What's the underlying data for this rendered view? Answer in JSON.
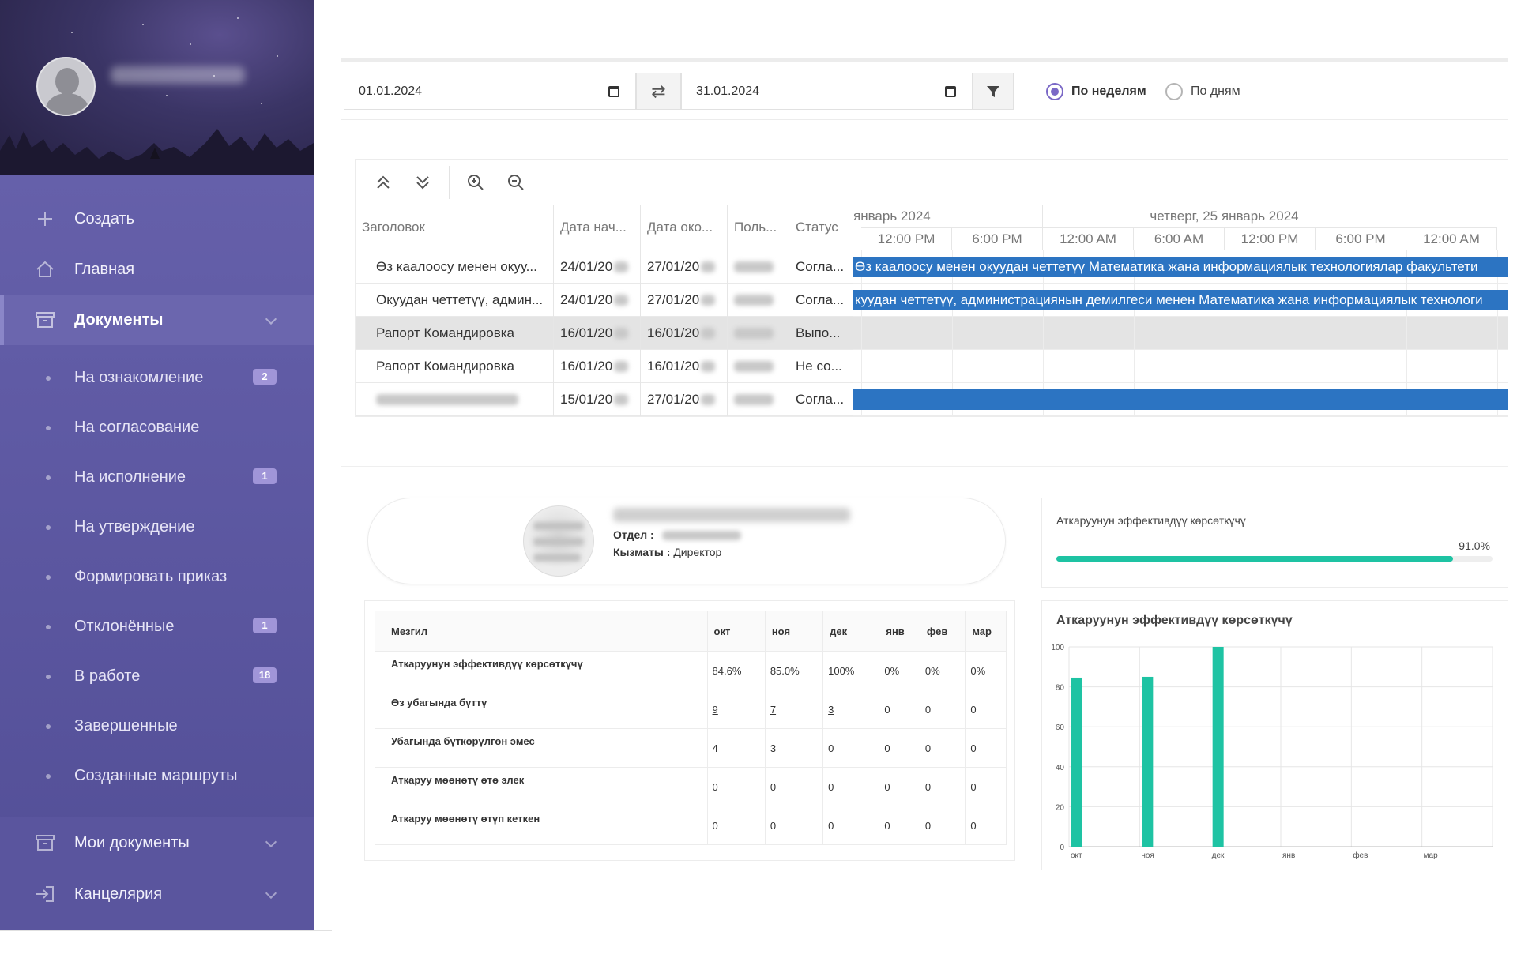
{
  "sidebar": {
    "nav": [
      {
        "label": "Создать"
      },
      {
        "label": "Главная"
      },
      {
        "label": "Документы"
      }
    ],
    "sub_items": [
      {
        "label": "На ознакомление",
        "badge": "2"
      },
      {
        "label": "На согласование",
        "badge": ""
      },
      {
        "label": "На исполнение",
        "badge": "1"
      },
      {
        "label": "На утверждение",
        "badge": ""
      },
      {
        "label": "Формировать приказ",
        "badge": ""
      },
      {
        "label": "Отклонённые",
        "badge": "1"
      },
      {
        "label": "В работе",
        "badge": "18"
      },
      {
        "label": "Завершенные",
        "badge": ""
      },
      {
        "label": "Созданные маршруты",
        "badge": ""
      }
    ],
    "bottom": [
      {
        "label": "Мои документы"
      },
      {
        "label": "Канцелярия"
      }
    ]
  },
  "filter": {
    "date_from": "01.01.2024",
    "date_to": "31.01.2024",
    "swap_symbol": "⇄",
    "radio_weeks": "По неделям",
    "radio_days": "По дням"
  },
  "gantt": {
    "columns": [
      "Заголовок",
      "Дата нач...",
      "Дата око...",
      "Поль...",
      "Статус"
    ],
    "rows": [
      {
        "title": "Өз каалоосу менен окуу...",
        "start": "24/01/20",
        "end": "27/01/20",
        "status": "Согла...",
        "bar": "Өз каалоосу менен окуудан четтетүү Математика жана информациялык технологиялар факультети"
      },
      {
        "title": "Окуудан четтетүү, админ...",
        "start": "24/01/20",
        "end": "27/01/20",
        "status": "Согла...",
        "bar": "куудан четтетүү, администрациянын демилгеси менен Математика жана информациялык технологи"
      },
      {
        "title": "Рапорт Командировка",
        "start": "16/01/20",
        "end": "16/01/20",
        "status": "Выпо...",
        "bar": ""
      },
      {
        "title": "Рапорт Командировка",
        "start": "16/01/20",
        "end": "16/01/20",
        "status": "Не со...",
        "bar": ""
      },
      {
        "title": "",
        "start": "15/01/20",
        "end": "27/01/20",
        "status": "Согла...",
        "bar": ""
      }
    ],
    "month_labels": [
      "январь 2024",
      "четверг, 25 январь 2024"
    ],
    "hours": [
      "12:00 PM",
      "6:00 PM",
      "12:00 AM",
      "6:00 AM",
      "12:00 PM",
      "6:00 PM",
      "12:00 AM"
    ]
  },
  "profile": {
    "dept_label": "Отдел :",
    "position_label": "Кызматы :",
    "position_value": "Директор"
  },
  "efficiency": {
    "title": "Аткаруунун эффективдүү көрсөткүчү",
    "percent_text": "91.0%",
    "value": 91.0,
    "color": "#1ec3a3"
  },
  "stats": {
    "header_label": "Мезгил",
    "months": [
      "окт",
      "ноя",
      "дек",
      "янв",
      "фев",
      "мар"
    ],
    "rows": [
      {
        "label": "Аткаруунун эффективдүү көрсөткүчү",
        "values": [
          "84.6%",
          "85.0%",
          "100%",
          "0%",
          "0%",
          "0%"
        ]
      },
      {
        "label": "Өз убагында бүттү",
        "values": [
          "9",
          "7",
          "3",
          "0",
          "0",
          "0"
        ]
      },
      {
        "label": "Убагында бүткөрүлгөн эмес",
        "values": [
          "4",
          "3",
          "0",
          "0",
          "0",
          "0"
        ]
      },
      {
        "label": "Аткаруу мөөнөтү өтө элек",
        "values": [
          "0",
          "0",
          "0",
          "0",
          "0",
          "0"
        ]
      },
      {
        "label": "Аткаруу мөөнөтү өтүп кеткен",
        "values": [
          "0",
          "0",
          "0",
          "0",
          "0",
          "0"
        ]
      }
    ]
  },
  "chart_data": {
    "type": "bar",
    "title": "Аткаруунун эффективдүү көрсөткүчү",
    "categories": [
      "окт",
      "ноя",
      "дек",
      "янв",
      "фев",
      "мар"
    ],
    "values": [
      84.6,
      85.0,
      100,
      0,
      0,
      0
    ],
    "ylim": [
      0,
      100
    ],
    "yticks": [
      0,
      20,
      40,
      60,
      80,
      100
    ],
    "grid": true,
    "color": "#1ec3a3"
  }
}
